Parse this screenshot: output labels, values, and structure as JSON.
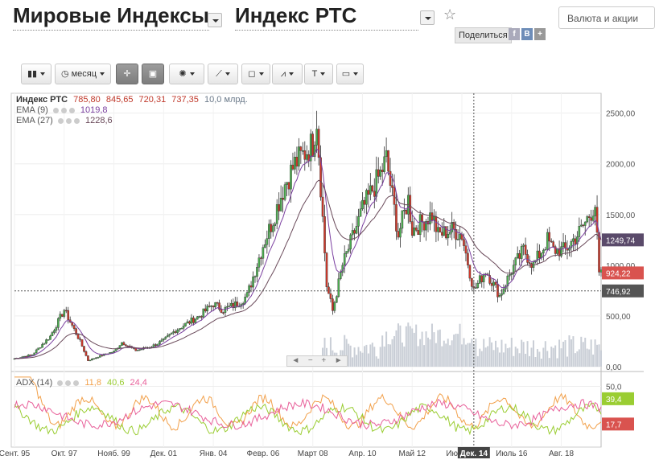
{
  "header": {
    "title_left": "Мировые Индексы",
    "title_right": "Индекс РТС",
    "share_label": "Поделиться",
    "share_buttons": [
      "f",
      "B",
      "+"
    ],
    "search_placeholder": "Валюта и акции"
  },
  "toolbar": {
    "period_label": "месяц",
    "items": [
      "chart-type",
      "period",
      "crosshair",
      "chart-mode",
      "indicators",
      "draw-line",
      "shapes",
      "fibonacci",
      "text",
      "image"
    ]
  },
  "legend": {
    "main_name": "Индекс РТС",
    "open": "785,80",
    "high": "845,65",
    "low": "720,31",
    "close": "737,35",
    "volume": "10,0 млрд.",
    "ema9_label": "EMA (9)",
    "ema9_value": "1019,8",
    "ema27_label": "EMA (27)",
    "ema27_value": "1228,6",
    "adx_label": "ADX (14)",
    "adx_v1": "11,8",
    "adx_v2": "40,6",
    "adx_v3": "24,4"
  },
  "colors": {
    "up": "#4caf50",
    "down": "#d0392b",
    "ema9": "#7b3fa0",
    "ema27": "#6a4a5a",
    "volume": "#c9ced6",
    "adx_orange": "#f2a04a",
    "adx_green": "#9acd32",
    "adx_pink": "#e8609a"
  },
  "nav_buttons": [
    "◄",
    "−",
    "+",
    "►"
  ],
  "chart_data": {
    "type": "candlestick",
    "y_axis_ticks": [
      "2500,00",
      "2000,00",
      "1500,00",
      "1000,00",
      "500,00",
      "0,00"
    ],
    "ylim": [
      0,
      2600
    ],
    "x_ticks": [
      "Сент. 95",
      "Окт. 97",
      "Нояб. 99",
      "Дек. 01",
      "Янв. 04",
      "Февр. 06",
      "Март 08",
      "Апр. 10",
      "Май 12",
      "Июнь 14",
      "Июль 16",
      "Авг. 18"
    ],
    "crosshair_x_label": "Дек. 14",
    "crosshair_price": "746,92",
    "price_tags": [
      {
        "label": "1249,74",
        "value": 1249.74,
        "color": "#5a4a6a"
      },
      {
        "label": "924,22",
        "value": 924.22,
        "color": "#d9534f"
      },
      {
        "label": "746,92",
        "value": 746.92,
        "color": "#555"
      }
    ],
    "price_points": [
      [
        "1995-09",
        80
      ],
      [
        "1996-06",
        120
      ],
      [
        "1997-03",
        300
      ],
      [
        "1997-10",
        560
      ],
      [
        "1998-06",
        250
      ],
      [
        "1998-10",
        60
      ],
      [
        "1999-06",
        120
      ],
      [
        "1999-11",
        150
      ],
      [
        "2000-03",
        240
      ],
      [
        "2000-10",
        160
      ],
      [
        "2001-06",
        200
      ],
      [
        "2001-12",
        260
      ],
      [
        "2002-06",
        360
      ],
      [
        "2003-06",
        500
      ],
      [
        "2004-01",
        620
      ],
      [
        "2004-06",
        560
      ],
      [
        "2005-01",
        620
      ],
      [
        "2005-06",
        700
      ],
      [
        "2006-02",
        1200
      ],
      [
        "2006-06",
        1400
      ],
      [
        "2007-01",
        1800
      ],
      [
        "2007-06",
        2000
      ],
      [
        "2008-03",
        2200
      ],
      [
        "2008-05",
        2450
      ],
      [
        "2008-10",
        800
      ],
      [
        "2009-01",
        550
      ],
      [
        "2009-06",
        1000
      ],
      [
        "2010-04",
        1550
      ],
      [
        "2011-01",
        1900
      ],
      [
        "2011-04",
        2050
      ],
      [
        "2011-10",
        1300
      ],
      [
        "2012-03",
        1650
      ],
      [
        "2012-05",
        1350
      ],
      [
        "2013-03",
        1500
      ],
      [
        "2013-06",
        1300
      ],
      [
        "2014-01",
        1350
      ],
      [
        "2014-06",
        1300
      ],
      [
        "2014-12",
        750
      ],
      [
        "2015-06",
        950
      ],
      [
        "2016-01",
        700
      ],
      [
        "2016-07",
        950
      ],
      [
        "2017-01",
        1150
      ],
      [
        "2017-06",
        1000
      ],
      [
        "2018-01",
        1250
      ],
      [
        "2018-04",
        1150
      ],
      [
        "2018-10",
        1150
      ],
      [
        "2019-06",
        1350
      ],
      [
        "2020-01",
        1600
      ],
      [
        "2020-03",
        900
      ]
    ],
    "adx_axis_ticks": [
      "50,0"
    ],
    "adx_tags": [
      {
        "label": "39,4",
        "color": "#9acd32"
      },
      {
        "label": "17,7",
        "color": "#d9534f"
      }
    ]
  }
}
